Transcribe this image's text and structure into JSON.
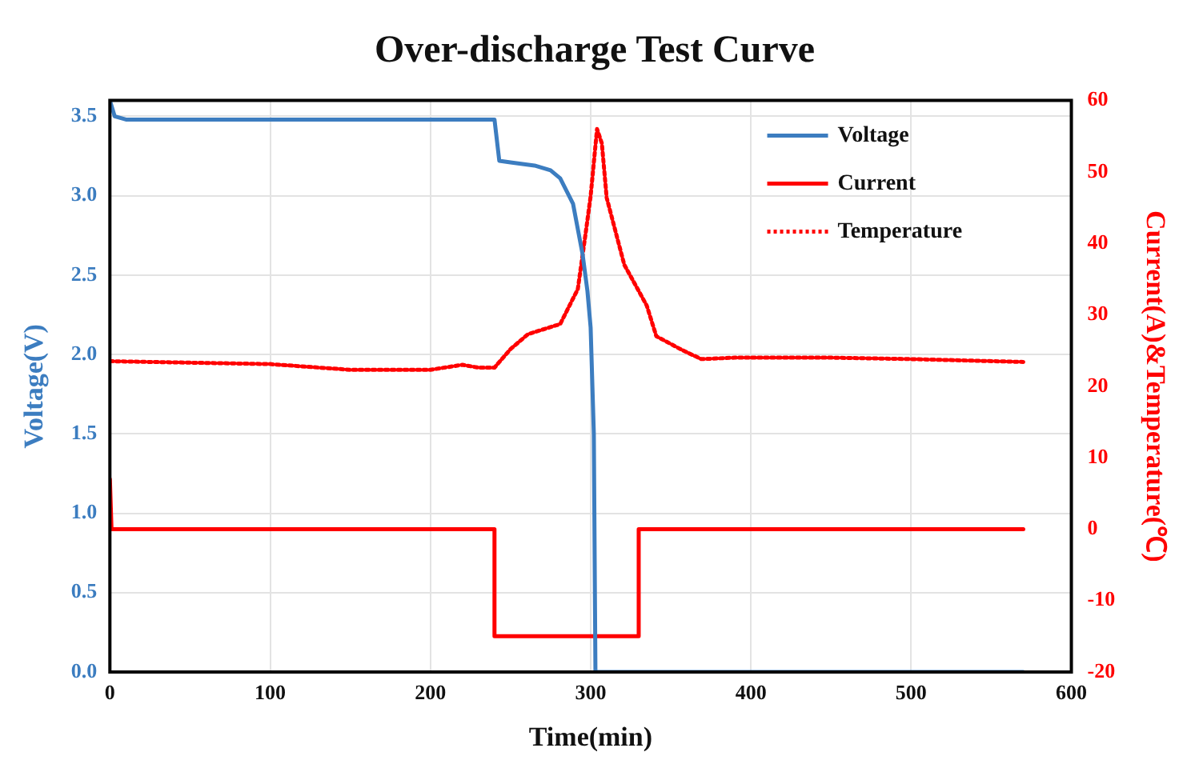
{
  "chart_data": {
    "type": "line",
    "title": "Over-discharge Test Curve",
    "xlabel": "Time(min)",
    "ylabel": "Voltage(V)",
    "y2label": "Current(A)&Temperature(℃)",
    "xlim": [
      0,
      600
    ],
    "xticks": [
      0,
      100,
      200,
      300,
      400,
      500,
      600
    ],
    "ylim": [
      0,
      3.6
    ],
    "yticks": [
      {
        "value": 0,
        "label": "0.0"
      },
      0.5,
      {
        "value": 1,
        "label": "1.0"
      },
      1.5,
      {
        "value": 2,
        "label": "2.0"
      },
      2.5,
      {
        "value": 3,
        "label": "3.0"
      },
      3.5
    ],
    "y2lim": [
      -20,
      60
    ],
    "y2ticks": [
      -20,
      -10,
      0,
      10,
      20,
      30,
      40,
      50,
      60
    ],
    "grid": true,
    "legend": "top right",
    "marker": "none",
    "series": [
      {
        "name": "Voltage",
        "color": "#3c7dc0",
        "line_style": "solid",
        "x": [
          0,
          3,
          10,
          100,
          200,
          240,
          243,
          250,
          265,
          275,
          281,
          289,
          295,
          298,
          300,
          302,
          303,
          350,
          450,
          570
        ],
        "values": [
          3.6,
          3.5,
          3.48,
          3.48,
          3.48,
          3.48,
          3.22,
          3.21,
          3.19,
          3.16,
          3.11,
          2.95,
          2.63,
          2.4,
          2.17,
          1.5,
          0,
          0,
          0,
          0
        ]
      },
      {
        "name": "Current",
        "color": "#ff0000",
        "axis": "y2",
        "line_style": "solid",
        "x": [
          0,
          1,
          240,
          240,
          330,
          330,
          570
        ],
        "values": [
          7,
          0,
          0,
          -15,
          -15,
          0,
          0
        ]
      },
      {
        "name": "Temperature",
        "color": "#ff0000",
        "axis": "y2",
        "line_style": "dotted",
        "x": [
          0,
          50,
          100,
          150,
          200,
          220,
          230,
          240,
          250,
          261,
          281,
          292,
          297,
          300,
          304,
          307,
          310,
          321,
          335,
          341,
          356,
          369,
          390,
          450,
          500,
          570
        ],
        "values": [
          23.5,
          23.3,
          23.1,
          22.3,
          22.3,
          23,
          22.6,
          22.6,
          25.2,
          27.3,
          28.7,
          33.6,
          41.6,
          46.6,
          56,
          54,
          46.4,
          37,
          31.3,
          27,
          25.2,
          23.8,
          24,
          24,
          23.8,
          23.4
        ]
      }
    ]
  }
}
